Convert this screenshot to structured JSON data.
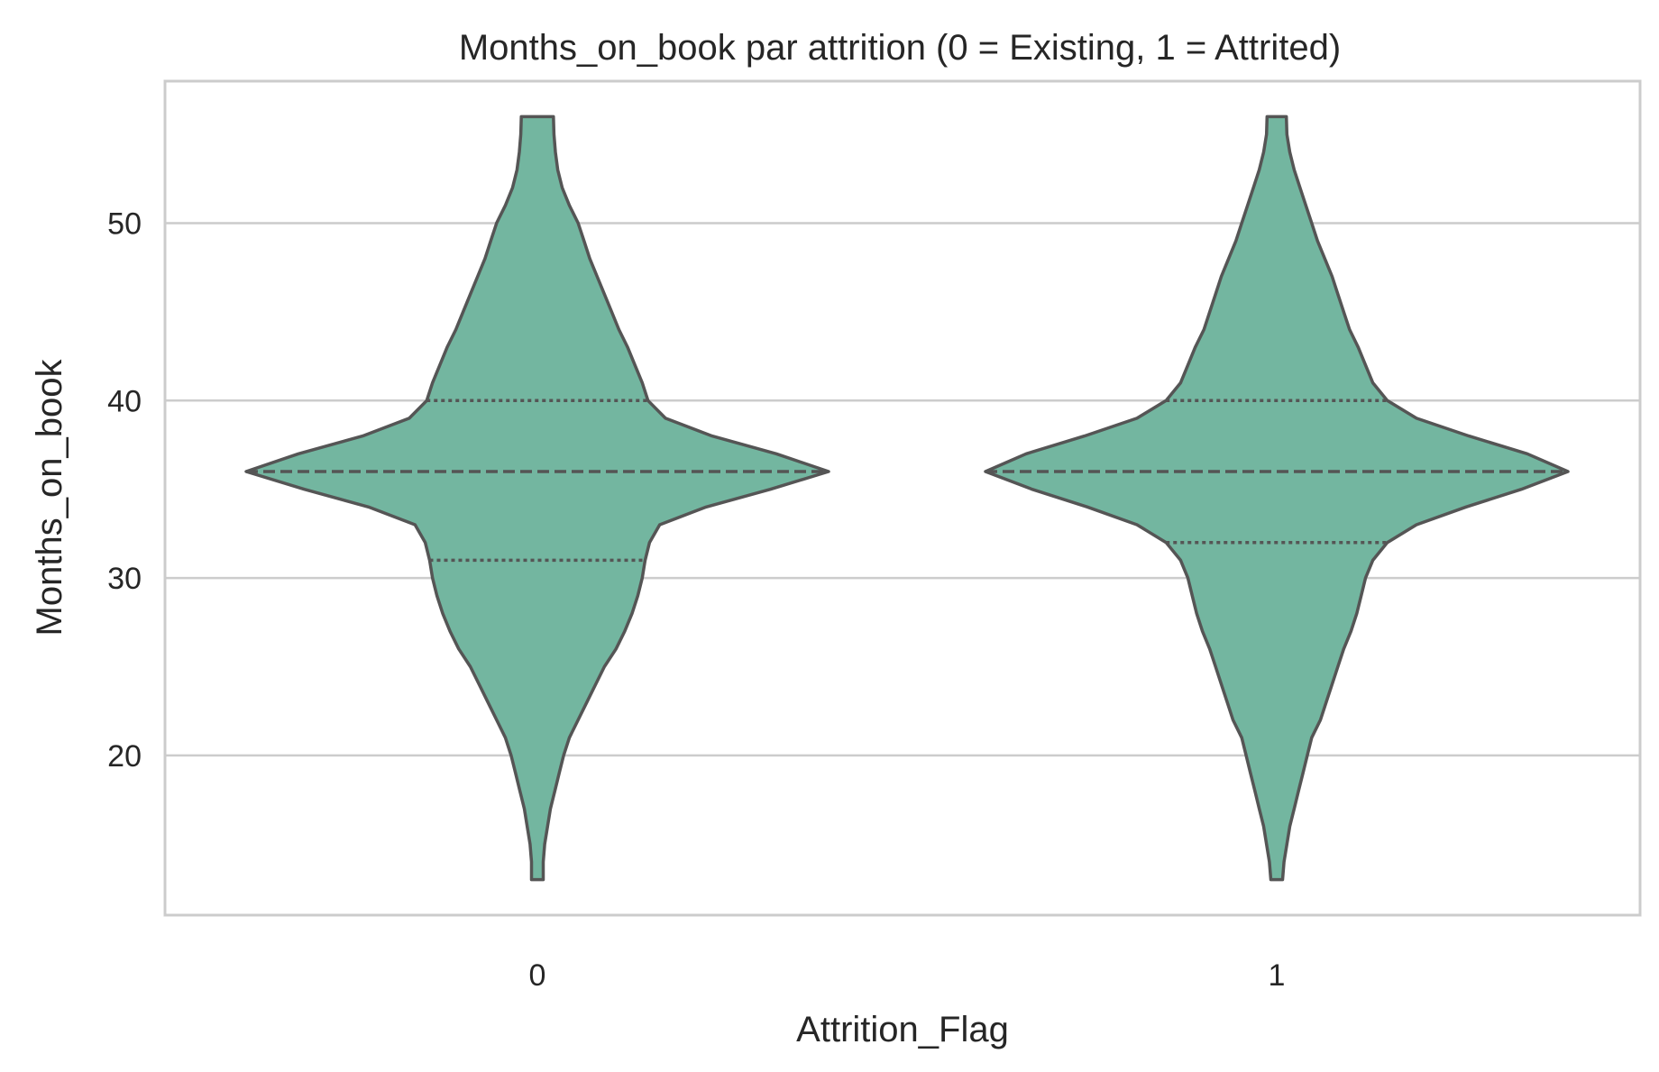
{
  "chart_data": {
    "type": "violin",
    "title": "Months_on_book par attrition (0 = Existing, 1 = Attrited)",
    "xlabel": "Attrition_Flag",
    "ylabel": "Months_on_book",
    "categories": [
      "0",
      "1"
    ],
    "ylim": [
      11,
      58
    ],
    "yticks": [
      20,
      30,
      40,
      50
    ],
    "grid": true,
    "colors": {
      "fill": "#73b6a0",
      "stroke": "#555555",
      "grid": "#cccccc"
    },
    "series": [
      {
        "category": "0",
        "min": 13,
        "q1": 31,
        "median": 36,
        "q3": 40,
        "max": 56,
        "density": [
          [
            13,
            0.02
          ],
          [
            14,
            0.02
          ],
          [
            15,
            0.025
          ],
          [
            16,
            0.035
          ],
          [
            17,
            0.045
          ],
          [
            18,
            0.06
          ],
          [
            19,
            0.075
          ],
          [
            20,
            0.09
          ],
          [
            21,
            0.11
          ],
          [
            22,
            0.14
          ],
          [
            23,
            0.17
          ],
          [
            24,
            0.2
          ],
          [
            25,
            0.23
          ],
          [
            26,
            0.27
          ],
          [
            27,
            0.3
          ],
          [
            28,
            0.325
          ],
          [
            29,
            0.345
          ],
          [
            30,
            0.36
          ],
          [
            31,
            0.37
          ],
          [
            32,
            0.385
          ],
          [
            33,
            0.42
          ],
          [
            34,
            0.58
          ],
          [
            35,
            0.8
          ],
          [
            36,
            1.0
          ],
          [
            37,
            0.82
          ],
          [
            38,
            0.6
          ],
          [
            39,
            0.44
          ],
          [
            40,
            0.38
          ],
          [
            41,
            0.36
          ],
          [
            42,
            0.335
          ],
          [
            43,
            0.31
          ],
          [
            44,
            0.28
          ],
          [
            45,
            0.255
          ],
          [
            46,
            0.23
          ],
          [
            47,
            0.205
          ],
          [
            48,
            0.18
          ],
          [
            49,
            0.16
          ],
          [
            50,
            0.14
          ],
          [
            51,
            0.11
          ],
          [
            52,
            0.085
          ],
          [
            53,
            0.07
          ],
          [
            54,
            0.062
          ],
          [
            55,
            0.057
          ],
          [
            56,
            0.055
          ]
        ]
      },
      {
        "category": "1",
        "min": 13,
        "q1": 32,
        "median": 36,
        "q3": 40,
        "max": 56,
        "density": [
          [
            13,
            0.02
          ],
          [
            14,
            0.025
          ],
          [
            15,
            0.035
          ],
          [
            16,
            0.045
          ],
          [
            17,
            0.06
          ],
          [
            18,
            0.075
          ],
          [
            19,
            0.09
          ],
          [
            20,
            0.105
          ],
          [
            21,
            0.12
          ],
          [
            22,
            0.15
          ],
          [
            23,
            0.17
          ],
          [
            24,
            0.19
          ],
          [
            25,
            0.21
          ],
          [
            26,
            0.23
          ],
          [
            27,
            0.255
          ],
          [
            28,
            0.275
          ],
          [
            29,
            0.29
          ],
          [
            30,
            0.305
          ],
          [
            31,
            0.33
          ],
          [
            32,
            0.38
          ],
          [
            33,
            0.48
          ],
          [
            34,
            0.65
          ],
          [
            35,
            0.84
          ],
          [
            36,
            1.0
          ],
          [
            37,
            0.86
          ],
          [
            38,
            0.66
          ],
          [
            39,
            0.48
          ],
          [
            40,
            0.38
          ],
          [
            41,
            0.33
          ],
          [
            42,
            0.305
          ],
          [
            43,
            0.28
          ],
          [
            44,
            0.25
          ],
          [
            45,
            0.23
          ],
          [
            46,
            0.21
          ],
          [
            47,
            0.19
          ],
          [
            48,
            0.165
          ],
          [
            49,
            0.14
          ],
          [
            50,
            0.12
          ],
          [
            51,
            0.1
          ],
          [
            52,
            0.08
          ],
          [
            53,
            0.06
          ],
          [
            54,
            0.045
          ],
          [
            55,
            0.035
          ],
          [
            56,
            0.033
          ]
        ]
      }
    ]
  }
}
